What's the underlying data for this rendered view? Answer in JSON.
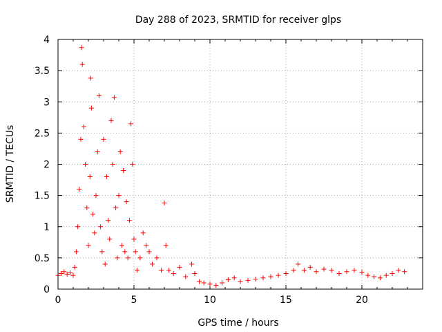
{
  "chart_data": {
    "type": "scatter",
    "title": "Day 288 of 2023, SRMTID for receiver glps",
    "xlabel": "GPS time / hours",
    "ylabel": "SRMTID / TECUs",
    "xlim": [
      0,
      24
    ],
    "ylim": [
      0,
      4
    ],
    "x_ticks": [
      0,
      5,
      10,
      15,
      20
    ],
    "x_tick_labels": [
      "0",
      "5",
      "10",
      "15",
      "20"
    ],
    "y_ticks": [
      0,
      0.5,
      1,
      1.5,
      2,
      2.5,
      3,
      3.5,
      4
    ],
    "y_tick_labels": [
      "0",
      "0.5",
      "1",
      "1.5",
      "2",
      "2.5",
      "3",
      "3.5",
      "4"
    ],
    "grid": true,
    "marker": "+",
    "series": [
      {
        "name": "SRMTID",
        "color": "#ff0000",
        "x": [
          0.0,
          0.2,
          0.4,
          0.6,
          0.8,
          1.0,
          1.1,
          1.2,
          1.3,
          1.4,
          1.5,
          1.55,
          1.6,
          1.7,
          1.8,
          1.9,
          2.0,
          2.1,
          2.15,
          2.2,
          2.3,
          2.4,
          2.5,
          2.6,
          2.7,
          2.8,
          2.9,
          3.0,
          3.1,
          3.2,
          3.3,
          3.4,
          3.5,
          3.6,
          3.7,
          3.8,
          3.9,
          4.0,
          4.1,
          4.2,
          4.3,
          4.4,
          4.5,
          4.6,
          4.7,
          4.8,
          4.9,
          5.0,
          5.1,
          5.2,
          5.4,
          5.6,
          5.8,
          6.0,
          6.2,
          6.5,
          6.8,
          7.0,
          7.1,
          7.3,
          7.6,
          8.0,
          8.4,
          8.8,
          9.0,
          9.3,
          9.6,
          10.0,
          10.4,
          10.8,
          11.2,
          11.6,
          12.0,
          12.5,
          13.0,
          13.5,
          14.0,
          14.5,
          15.0,
          15.5,
          15.8,
          16.2,
          16.6,
          17.0,
          17.5,
          18.0,
          18.5,
          19.0,
          19.5,
          20.0,
          20.4,
          20.8,
          21.2,
          21.6,
          22.0,
          22.4,
          22.8
        ],
        "y": [
          0.22,
          0.25,
          0.28,
          0.24,
          0.26,
          0.22,
          0.35,
          0.6,
          1.0,
          1.6,
          2.4,
          3.87,
          3.6,
          2.6,
          2.0,
          1.3,
          0.7,
          1.8,
          3.38,
          2.9,
          1.2,
          0.9,
          1.5,
          2.2,
          3.1,
          1.0,
          0.6,
          2.4,
          0.4,
          1.8,
          1.1,
          0.8,
          2.7,
          2.0,
          3.07,
          1.3,
          0.5,
          1.5,
          2.2,
          0.7,
          1.9,
          0.6,
          1.4,
          0.5,
          1.1,
          2.65,
          2.0,
          0.8,
          0.6,
          0.3,
          0.5,
          0.9,
          0.7,
          0.6,
          0.4,
          0.5,
          0.3,
          1.38,
          0.7,
          0.3,
          0.25,
          0.35,
          0.2,
          0.4,
          0.25,
          0.12,
          0.1,
          0.08,
          0.06,
          0.1,
          0.15,
          0.18,
          0.12,
          0.14,
          0.16,
          0.18,
          0.2,
          0.22,
          0.25,
          0.3,
          0.4,
          0.3,
          0.35,
          0.28,
          0.32,
          0.3,
          0.25,
          0.28,
          0.3,
          0.27,
          0.22,
          0.2,
          0.18,
          0.22,
          0.25,
          0.3,
          0.28
        ]
      }
    ]
  }
}
